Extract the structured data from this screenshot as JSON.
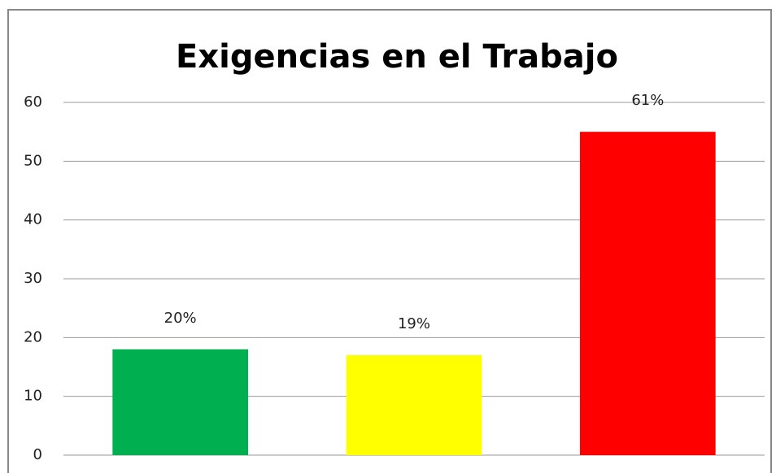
{
  "chart_data": {
    "type": "bar",
    "title": "Exigencias en el Trabajo",
    "categories": [
      null,
      null,
      null
    ],
    "values": [
      18,
      17,
      55
    ],
    "value_labels": [
      "20%",
      "19%",
      "61%"
    ],
    "colors": [
      "#00b050",
      "#ffff00",
      "#ff0000"
    ],
    "ylim": [
      0,
      60
    ],
    "yticks": [
      0,
      10,
      20,
      30,
      40,
      50,
      60
    ],
    "grid": true
  }
}
